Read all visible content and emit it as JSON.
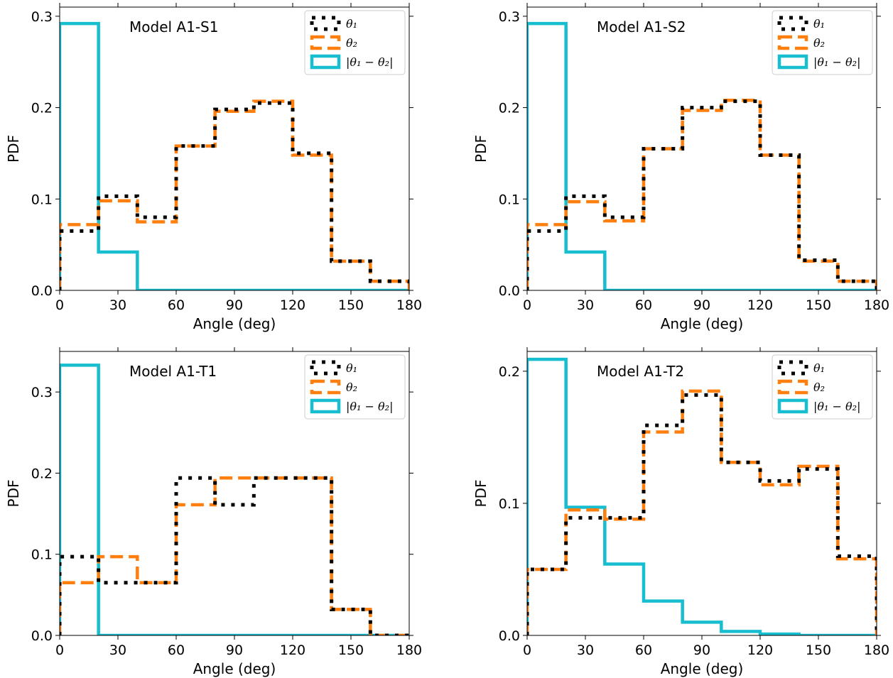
{
  "figure": {
    "legend_labels": [
      "θ₁",
      "θ₂",
      "|θ₁ − θ₂|"
    ],
    "colors": {
      "theta1": "#000000",
      "theta2": "#ff7f0e",
      "diff": "#17becf"
    }
  },
  "chart_data": [
    {
      "type": "histogram",
      "title": "Model A1-S1",
      "xlabel": "Angle (deg)",
      "ylabel": "PDF",
      "xlim": [
        0,
        180
      ],
      "ylim": [
        0,
        0.31
      ],
      "xticks": [
        0,
        30,
        60,
        90,
        120,
        150,
        180
      ],
      "yticks": [
        0.0,
        0.1,
        0.2,
        0.3
      ],
      "ytick_labels": [
        "0.0",
        "0.1",
        "0.2",
        "0.3"
      ],
      "legend_placement": "top-right",
      "bin_edges": [
        0,
        20,
        40,
        60,
        80,
        100,
        120,
        140,
        160,
        180
      ],
      "series": [
        {
          "name": "θ₁",
          "style": "dotted",
          "values": [
            0.065,
            0.103,
            0.08,
            0.158,
            0.198,
            0.205,
            0.15,
            0.032,
            0.01
          ]
        },
        {
          "name": "θ₂",
          "style": "dashed",
          "values": [
            0.072,
            0.098,
            0.075,
            0.158,
            0.196,
            0.207,
            0.148,
            0.032,
            0.01
          ]
        },
        {
          "name": "|θ₁ − θ₂|",
          "style": "solid",
          "values": [
            0.292,
            0.042,
            0,
            0,
            0,
            0,
            0,
            0,
            0
          ]
        }
      ]
    },
    {
      "type": "histogram",
      "title": "Model A1-S2",
      "xlabel": "Angle (deg)",
      "ylabel": "PDF",
      "xlim": [
        0,
        180
      ],
      "ylim": [
        0,
        0.31
      ],
      "xticks": [
        0,
        30,
        60,
        90,
        120,
        150,
        180
      ],
      "yticks": [
        0.0,
        0.1,
        0.2,
        0.3
      ],
      "ytick_labels": [
        "0.0",
        "0.1",
        "0.2",
        "0.3"
      ],
      "legend_placement": "top-right",
      "bin_edges": [
        0,
        20,
        40,
        60,
        80,
        100,
        120,
        140,
        160,
        180
      ],
      "series": [
        {
          "name": "θ₁",
          "style": "dotted",
          "values": [
            0.065,
            0.103,
            0.08,
            0.155,
            0.2,
            0.207,
            0.148,
            0.033,
            0.01
          ]
        },
        {
          "name": "θ₂",
          "style": "dashed",
          "values": [
            0.072,
            0.097,
            0.076,
            0.155,
            0.197,
            0.208,
            0.148,
            0.032,
            0.01
          ]
        },
        {
          "name": "|θ₁ − θ₂|",
          "style": "solid",
          "values": [
            0.292,
            0.042,
            0,
            0,
            0,
            0,
            0,
            0,
            0
          ]
        }
      ]
    },
    {
      "type": "histogram",
      "title": "Model A1-T1",
      "xlabel": "Angle (deg)",
      "ylabel": "PDF",
      "xlim": [
        0,
        180
      ],
      "ylim": [
        0,
        0.35
      ],
      "xticks": [
        0,
        30,
        60,
        90,
        120,
        150,
        180
      ],
      "yticks": [
        0.0,
        0.1,
        0.2,
        0.3
      ],
      "ytick_labels": [
        "0.0",
        "0.1",
        "0.2",
        "0.3"
      ],
      "legend_placement": "top-right",
      "bin_edges": [
        0,
        20,
        40,
        60,
        80,
        100,
        120,
        140,
        160,
        180
      ],
      "series": [
        {
          "name": "θ₁",
          "style": "dotted",
          "values": [
            0.097,
            0.065,
            0.065,
            0.194,
            0.161,
            0.194,
            0.194,
            0.032,
            0.0
          ]
        },
        {
          "name": "θ₂",
          "style": "dashed",
          "values": [
            0.065,
            0.097,
            0.065,
            0.161,
            0.194,
            0.194,
            0.194,
            0.032,
            0.0
          ]
        },
        {
          "name": "|θ₁ − θ₂|",
          "style": "solid",
          "values": [
            0.333,
            0,
            0,
            0,
            0,
            0,
            0,
            0,
            0
          ]
        }
      ]
    },
    {
      "type": "histogram",
      "title": "Model A1-T2",
      "xlabel": "Angle (deg)",
      "ylabel": "PDF",
      "xlim": [
        0,
        180
      ],
      "ylim": [
        0,
        0.215
      ],
      "xticks": [
        0,
        30,
        60,
        90,
        120,
        150,
        180
      ],
      "yticks": [
        0.0,
        0.1,
        0.2
      ],
      "ytick_labels": [
        "0.0",
        "0.1",
        "0.2"
      ],
      "legend_placement": "top-right",
      "bin_edges": [
        0,
        20,
        40,
        60,
        80,
        100,
        120,
        140,
        160,
        180
      ],
      "series": [
        {
          "name": "θ₁",
          "style": "dotted",
          "values": [
            0.05,
            0.089,
            0.089,
            0.159,
            0.182,
            0.131,
            0.117,
            0.126,
            0.06
          ]
        },
        {
          "name": "θ₂",
          "style": "dashed",
          "values": [
            0.05,
            0.095,
            0.088,
            0.154,
            0.185,
            0.131,
            0.114,
            0.128,
            0.058
          ]
        },
        {
          "name": "|θ₁ − θ₂|",
          "style": "solid",
          "values": [
            0.209,
            0.097,
            0.054,
            0.026,
            0.01,
            0.003,
            0.001,
            0,
            0
          ]
        }
      ]
    }
  ]
}
